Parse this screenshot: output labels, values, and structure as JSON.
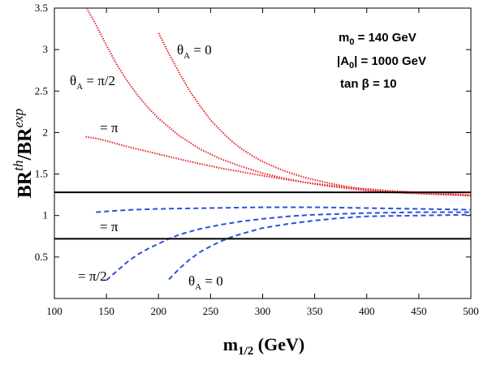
{
  "chart_data": {
    "type": "line",
    "xlabel": "m",
    "xlabel_sub": "1/2",
    "xlabel_unit": " (GeV)",
    "ylabel_main": "BR",
    "ylabel_sup1": "th",
    "ylabel_slash": "/BR",
    "ylabel_sup2": "exp",
    "xlim": [
      100,
      500
    ],
    "ylim": [
      0,
      3.5
    ],
    "xticks": [
      100,
      150,
      200,
      250,
      300,
      350,
      400,
      450,
      500
    ],
    "yticks": [
      0.5,
      1,
      1.5,
      2,
      2.5,
      3,
      3.5
    ],
    "grid": false,
    "bounds": [
      1.28,
      0.72
    ],
    "params": {
      "m0": "m",
      "m0_sub": "0",
      "m0_val": " = 140 GeV",
      "a0_open": "|A",
      "a0_sub": "0",
      "a0_val": "| = 1000 GeV",
      "tanb": "tan β = 10"
    },
    "series": [
      {
        "style": "dotted",
        "color": "#e8202a",
        "x": [
          131,
          140,
          150,
          160,
          170,
          180,
          190,
          200,
          220,
          240,
          260,
          280,
          300,
          320,
          340,
          360,
          380,
          400,
          420,
          440,
          460,
          480,
          500
        ],
        "y": [
          3.5,
          3.3,
          3.05,
          2.82,
          2.62,
          2.45,
          2.3,
          2.17,
          1.96,
          1.8,
          1.68,
          1.59,
          1.51,
          1.45,
          1.4,
          1.36,
          1.33,
          1.3,
          1.28,
          1.27,
          1.26,
          1.25,
          1.24
        ]
      },
      {
        "style": "dotted",
        "color": "#e8202a",
        "x": [
          200,
          210,
          220,
          230,
          240,
          250,
          260,
          270,
          280,
          290,
          300,
          320,
          340,
          360,
          380,
          400,
          420,
          440,
          460,
          480,
          500
        ],
        "y": [
          3.2,
          2.95,
          2.72,
          2.5,
          2.32,
          2.15,
          2.02,
          1.9,
          1.8,
          1.72,
          1.65,
          1.54,
          1.46,
          1.4,
          1.35,
          1.31,
          1.29,
          1.27,
          1.26,
          1.25,
          1.24
        ]
      },
      {
        "style": "dotted",
        "color": "#e8202a",
        "x": [
          130,
          140,
          150,
          170,
          200,
          230,
          260,
          300,
          340,
          380,
          420,
          460,
          500
        ],
        "y": [
          1.95,
          1.93,
          1.9,
          1.83,
          1.74,
          1.65,
          1.57,
          1.48,
          1.4,
          1.34,
          1.3,
          1.27,
          1.25
        ]
      },
      {
        "style": "dashed",
        "color": "#2a50e0",
        "x": [
          140,
          150,
          175,
          200,
          250,
          300,
          350,
          400,
          450,
          500
        ],
        "y": [
          1.04,
          1.05,
          1.07,
          1.08,
          1.09,
          1.1,
          1.1,
          1.09,
          1.08,
          1.07
        ]
      },
      {
        "style": "dashed",
        "color": "#2a50e0",
        "x": [
          150,
          160,
          170,
          180,
          190,
          200,
          210,
          220,
          240,
          260,
          280,
          300,
          325,
          350,
          375,
          400,
          450,
          500
        ],
        "y": [
          0.22,
          0.33,
          0.44,
          0.53,
          0.6,
          0.66,
          0.72,
          0.77,
          0.84,
          0.89,
          0.93,
          0.96,
          0.99,
          1.01,
          1.02,
          1.03,
          1.04,
          1.04
        ]
      },
      {
        "style": "dashed",
        "color": "#2a50e0",
        "x": [
          210,
          220,
          230,
          240,
          250,
          260,
          270,
          280,
          300,
          325,
          350,
          375,
          400,
          450,
          500
        ],
        "y": [
          0.23,
          0.36,
          0.47,
          0.56,
          0.63,
          0.69,
          0.74,
          0.78,
          0.85,
          0.9,
          0.94,
          0.97,
          0.99,
          1.0,
          1.01
        ]
      }
    ],
    "annotations": {
      "theta_pi2": {
        "pre": "θ",
        "sub": "A",
        "post": " = π/2"
      },
      "theta_0": {
        "pre": "θ",
        "sub": "A",
        "post": " = 0"
      },
      "eq_pi_red": "= π",
      "eq_pi_blue": "= π",
      "eq_pi2_blue": "= π/2",
      "theta_0_blue": {
        "pre": "θ",
        "sub": "A",
        "post": " = 0"
      }
    }
  }
}
